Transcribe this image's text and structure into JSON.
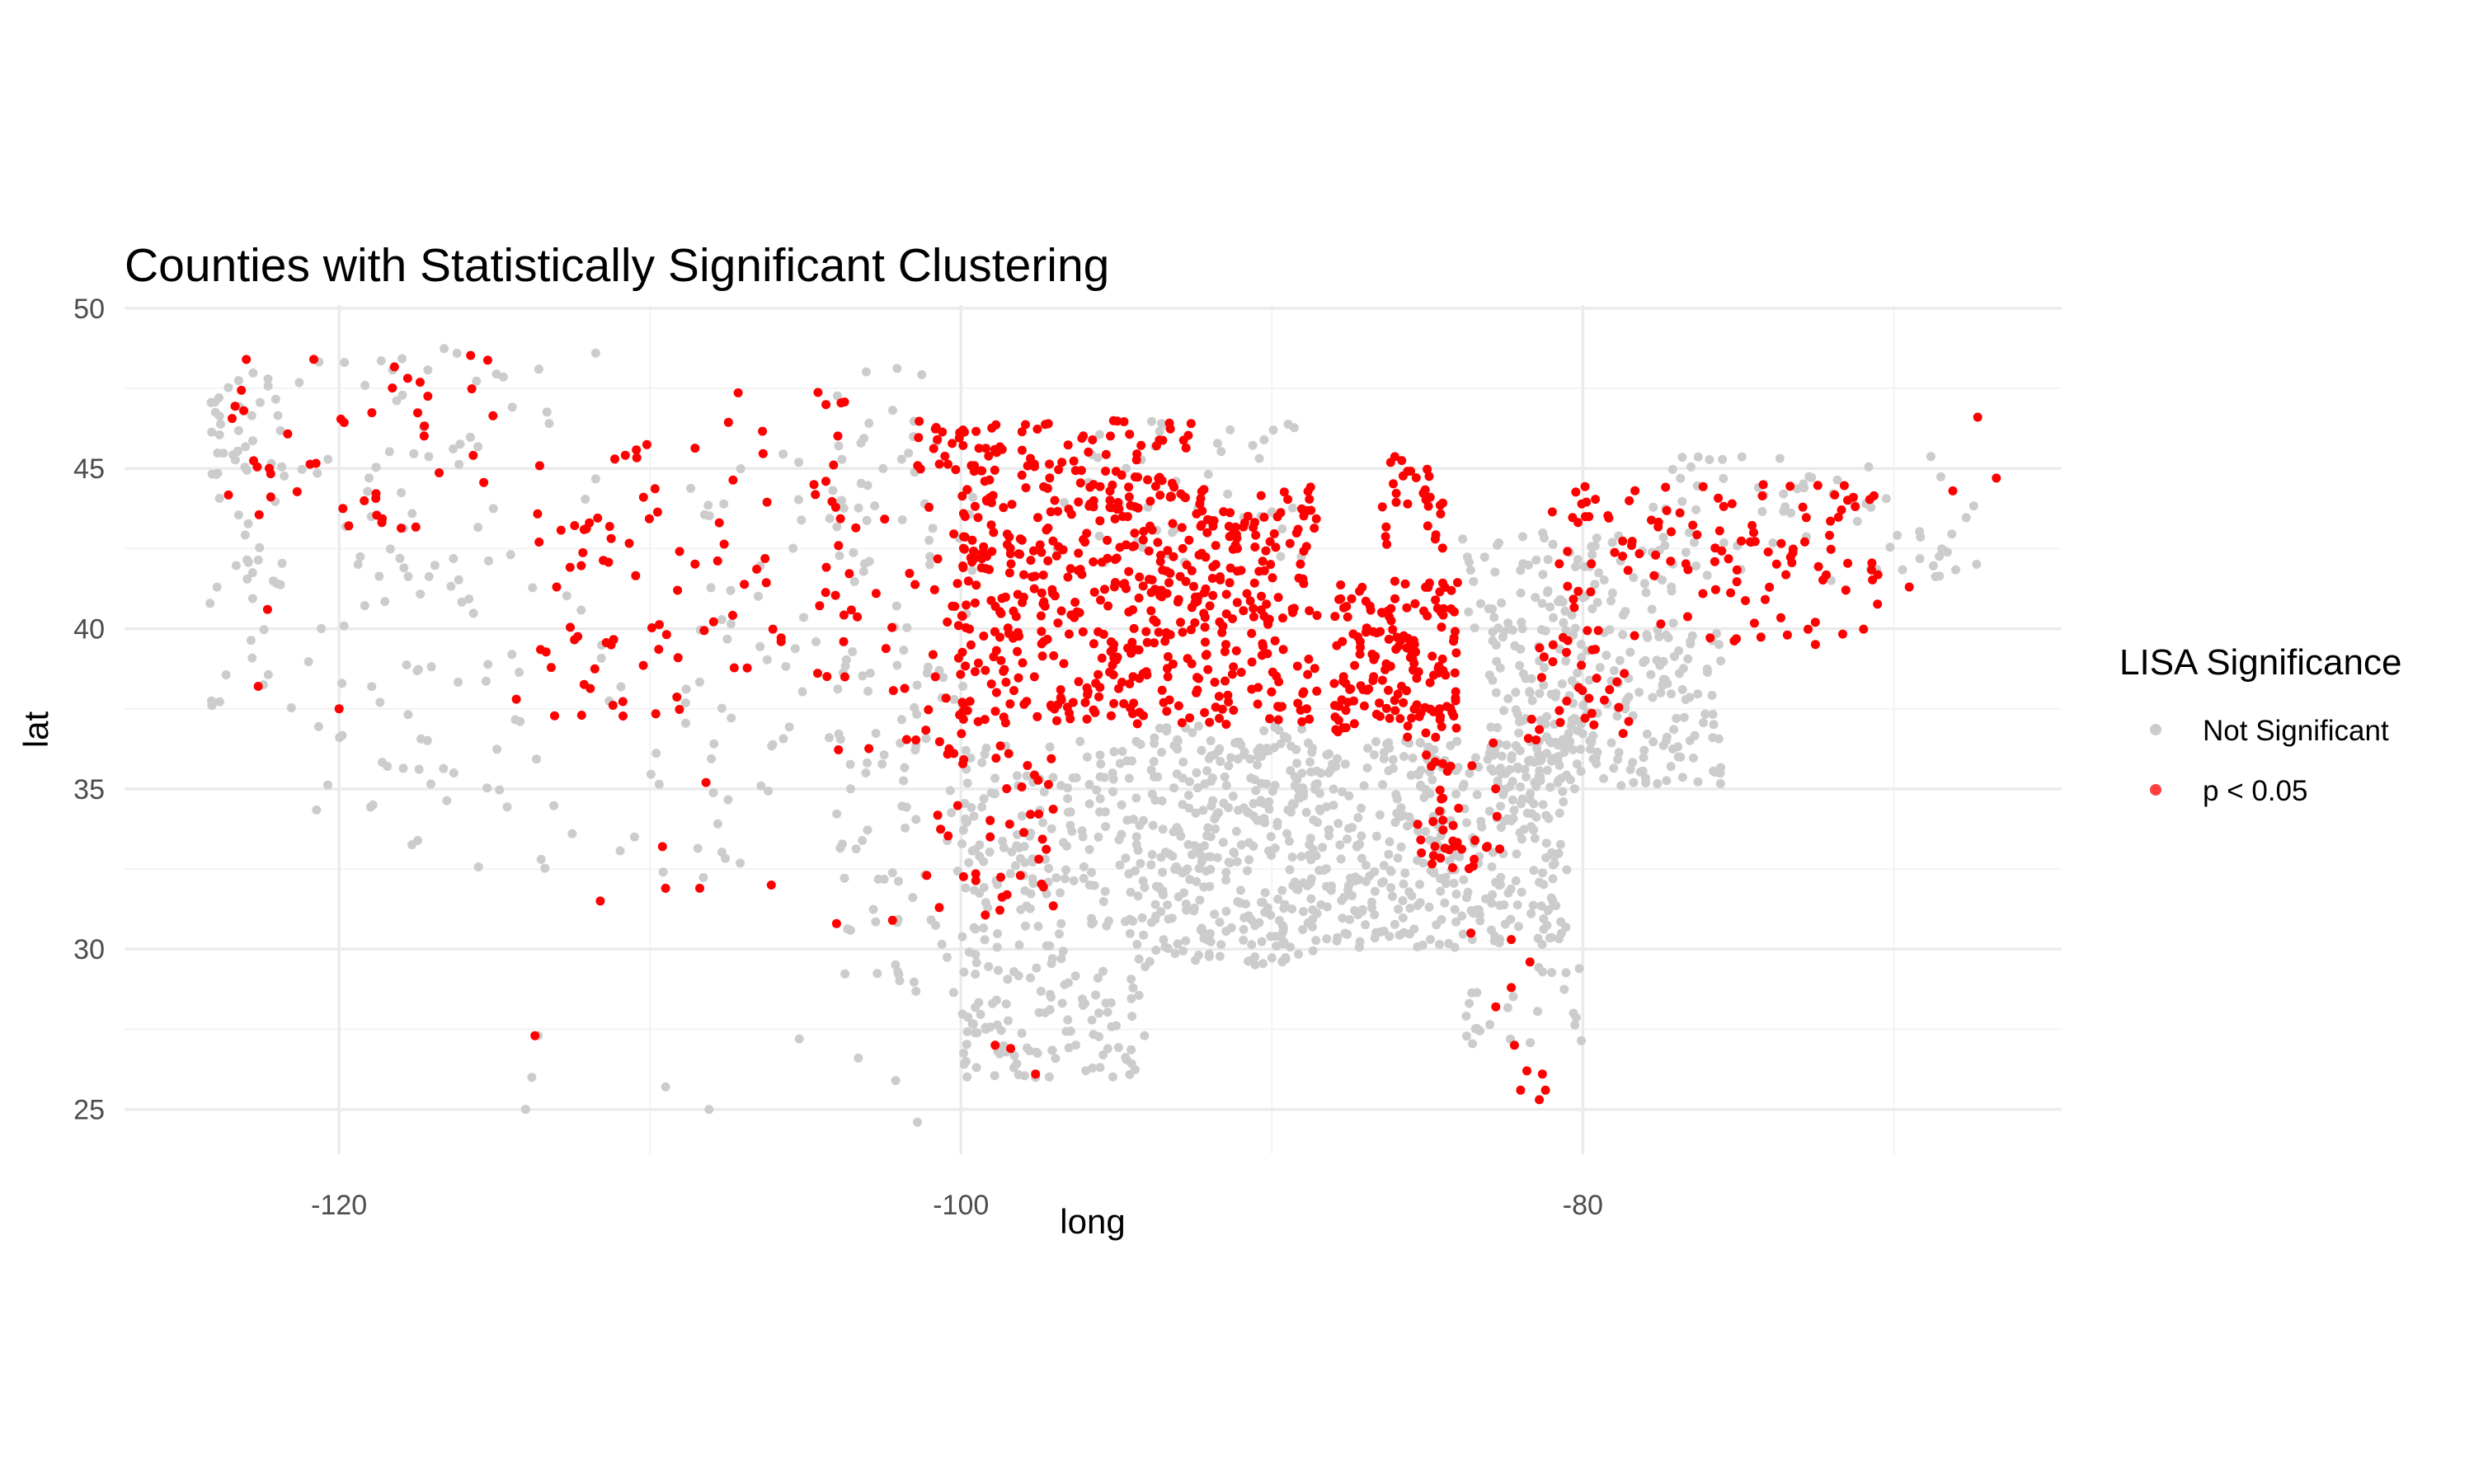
{
  "chart_data": {
    "type": "scatter",
    "title": "Counties with Statistically Significant Clustering",
    "xlabel": "long",
    "ylabel": "lat",
    "xlim": [
      -126.9,
      -64.6
    ],
    "ylim": [
      23.6,
      50.1
    ],
    "x_ticks": [
      -120,
      -100,
      -80
    ],
    "y_ticks": [
      25,
      30,
      35,
      40,
      45,
      50
    ],
    "x_tick_labels": [
      "-120",
      "-100",
      "-80"
    ],
    "y_tick_labels": [
      "25",
      "30",
      "35",
      "40",
      "45",
      "50"
    ],
    "grid": true,
    "legend": {
      "title": "LISA Significance",
      "position": "right"
    },
    "series": [
      {
        "name": "Not Significant",
        "color": "#cccccc",
        "regions": [
          {
            "x": [
              -124.2,
              -121.8
            ],
            "y": [
              37.2,
              48.4
            ],
            "n": 60
          },
          {
            "x": [
              -122.0,
              -117.0
            ],
            "y": [
              33.5,
              48.6
            ],
            "n": 55
          },
          {
            "x": [
              -119.0,
              -111.0
            ],
            "y": [
              40.0,
              48.8
            ],
            "n": 30
          },
          {
            "x": [
              -118.5,
              -109.0
            ],
            "y": [
              31.5,
              42.0
            ],
            "n": 40
          },
          {
            "x": [
              -109.0,
              -102.5
            ],
            "y": [
              32.0,
              45.5
            ],
            "n": 70
          },
          {
            "x": [
              -104.0,
              -99.5
            ],
            "y": [
              28.5,
              48.5
            ],
            "n": 110
          },
          {
            "x": [
              -100.0,
              -94.0
            ],
            "y": [
              26.0,
              36.5
            ],
            "n": 280
          },
          {
            "x": [
              -94.0,
              -88.5
            ],
            "y": [
              29.5,
              37.0
            ],
            "n": 320
          },
          {
            "x": [
              -88.5,
              -80.5
            ],
            "y": [
              30.0,
              36.5
            ],
            "n": 360
          },
          {
            "x": [
              -83.0,
              -75.5
            ],
            "y": [
              35.0,
              40.0
            ],
            "n": 230
          },
          {
            "x": [
              -97.0,
              -89.0
            ],
            "y": [
              42.0,
              46.5
            ],
            "n": 45
          },
          {
            "x": [
              -84.0,
              -77.0
            ],
            "y": [
              40.0,
              43.0
            ],
            "n": 80
          },
          {
            "x": [
              -78.0,
              -67.0
            ],
            "y": [
              41.5,
              45.5
            ],
            "n": 70
          },
          {
            "x": [
              -84.0,
              -80.0
            ],
            "y": [
              27.0,
              29.5
            ],
            "n": 25
          }
        ],
        "points": [
          [
            -113.6,
            27.3
          ],
          [
            -113.8,
            26.0
          ],
          [
            -114.0,
            25.0
          ],
          [
            -109.5,
            25.7
          ],
          [
            -108.1,
            25.0
          ],
          [
            -105.2,
            27.2
          ],
          [
            -103.3,
            26.6
          ],
          [
            -102.1,
            25.9
          ],
          [
            -101.4,
            24.6
          ],
          [
            -99.2,
            27.5
          ],
          [
            -98.3,
            26.3
          ],
          [
            -97.6,
            26.0
          ],
          [
            -110.5,
            33.5
          ],
          [
            -112.5,
            33.6
          ],
          [
            -113.5,
            32.8
          ]
        ]
      },
      {
        "name": "p < 0.05",
        "color": "#ff0000",
        "regions": [
          {
            "x": [
              -100.0,
              -88.5
            ],
            "y": [
              37.0,
              44.5
            ],
            "n": 520
          },
          {
            "x": [
              -101.5,
              -92.5
            ],
            "y": [
              44.5,
              46.5
            ],
            "n": 90
          },
          {
            "x": [
              -104.5,
              -99.5
            ],
            "y": [
              36.0,
              44.0
            ],
            "n": 50
          },
          {
            "x": [
              -101.0,
              -97.0
            ],
            "y": [
              31.0,
              36.5
            ],
            "n": 40
          },
          {
            "x": [
              -88.0,
              -84.0
            ],
            "y": [
              36.5,
              41.5
            ],
            "n": 160
          },
          {
            "x": [
              -86.5,
              -84.5
            ],
            "y": [
              42.5,
              45.5
            ],
            "n": 30
          },
          {
            "x": [
              -85.5,
              -82.5
            ],
            "y": [
              32.5,
              36.5
            ],
            "n": 40
          },
          {
            "x": [
              -81.0,
              -70.5
            ],
            "y": [
              39.5,
              44.5
            ],
            "n": 120
          },
          {
            "x": [
              -82.0,
              -78.5
            ],
            "y": [
              36.5,
              39.5
            ],
            "n": 30
          },
          {
            "x": [
              -124.2,
              -115.0
            ],
            "y": [
              43.0,
              48.6
            ],
            "n": 45
          },
          {
            "x": [
              -114.0,
              -109.0
            ],
            "y": [
              37.0,
              46.0
            ],
            "n": 55
          },
          {
            "x": [
              -109.0,
              -103.5
            ],
            "y": [
              38.5,
              47.5
            ],
            "n": 40
          }
        ],
        "points": [
          [
            -113.7,
            27.3
          ],
          [
            -98.9,
            27.0
          ],
          [
            -98.4,
            26.9
          ],
          [
            -97.6,
            26.1
          ],
          [
            -82.0,
            25.6
          ],
          [
            -81.4,
            25.3
          ],
          [
            -81.2,
            25.6
          ],
          [
            -81.3,
            26.1
          ],
          [
            -81.8,
            26.2
          ],
          [
            -82.2,
            27.0
          ],
          [
            -82.8,
            28.2
          ],
          [
            -82.3,
            28.8
          ],
          [
            -81.7,
            29.6
          ],
          [
            -82.3,
            30.3
          ],
          [
            -83.6,
            30.5
          ],
          [
            -122.3,
            40.6
          ],
          [
            -122.6,
            38.2
          ],
          [
            -120.0,
            37.5
          ],
          [
            -114.3,
            37.8
          ],
          [
            -112.2,
            37.3
          ],
          [
            -111.6,
            31.5
          ],
          [
            -109.5,
            31.9
          ],
          [
            -108.4,
            31.9
          ],
          [
            -109.6,
            33.2
          ],
          [
            -108.2,
            35.2
          ],
          [
            -106.1,
            32.0
          ],
          [
            -104.0,
            30.8
          ],
          [
            -102.2,
            30.9
          ],
          [
            -101.1,
            32.3
          ],
          [
            -69.5,
            41.3
          ],
          [
            -67.3,
            46.6
          ],
          [
            -66.7,
            44.7
          ],
          [
            -68.1,
            44.3
          ],
          [
            -71.3,
            44.1
          ],
          [
            -75.2,
            43.9
          ]
        ]
      }
    ]
  }
}
